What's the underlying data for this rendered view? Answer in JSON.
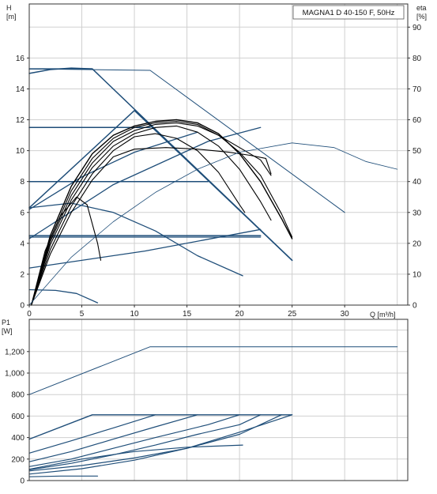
{
  "chart_data": [
    {
      "type": "line",
      "title": "MAGNA1 D 40-150 F, 50Hz",
      "xlabel": "Q [m³/h]",
      "ylabel_left": "H",
      "ylabel_left_unit": "[m]",
      "ylabel_right": "eta",
      "ylabel_right_unit": "[%]",
      "xlim": [
        0,
        36
      ],
      "ylim": [
        0,
        19.5
      ],
      "ylim_right": [
        0,
        97.5
      ],
      "x_ticks": [
        "0",
        "5",
        "10",
        "15",
        "20",
        "25",
        "30"
      ],
      "x_tick_values": [
        0,
        5,
        10,
        15,
        20,
        25,
        30
      ],
      "y_ticks": [
        "0",
        "2",
        "4",
        "6",
        "8",
        "10",
        "12",
        "14",
        "16"
      ],
      "y_tick_values": [
        0,
        2,
        4,
        6,
        8,
        10,
        12,
        14,
        16
      ],
      "y_right_ticks": [
        "0",
        "10",
        "20",
        "30",
        "40",
        "50",
        "60",
        "70",
        "80",
        "90"
      ],
      "y_right_tick_values": [
        0,
        10,
        20,
        30,
        40,
        50,
        60,
        70,
        80,
        90
      ],
      "grid": true,
      "series": [
        {
          "color": "#1f4e79",
          "width": 1.5,
          "values": [
            [
              0,
              15.3
            ],
            [
              6,
              15.3
            ],
            [
              25,
              2.9
            ]
          ]
        },
        {
          "color": "#1f4e79",
          "width": 1.5,
          "values": [
            [
              0,
              15.0
            ],
            [
              2,
              15.25
            ],
            [
              4,
              15.35
            ],
            [
              6,
              15.3
            ]
          ]
        },
        {
          "color": "#1f4e79",
          "width": 1.5,
          "values": [
            [
              0,
              11.5
            ],
            [
              11.5,
              11.5
            ]
          ]
        },
        {
          "color": "#1f4e79",
          "width": 1.5,
          "values": [
            [
              0,
              8.0
            ],
            [
              17,
              8.0
            ]
          ]
        },
        {
          "color": "#1f4e79",
          "width": 1.5,
          "values": [
            [
              0,
              4.5
            ],
            [
              22,
              4.5
            ]
          ]
        },
        {
          "color": "#1f4e79",
          "width": 1.5,
          "values": [
            [
              0,
              6.3
            ],
            [
              10,
              12.6
            ],
            [
              25,
              2.9
            ]
          ]
        },
        {
          "color": "#1f4e79",
          "width": 1.3,
          "values": [
            [
              0,
              6.3
            ],
            [
              4,
              6.6
            ],
            [
              8,
              6.0
            ],
            [
              12,
              4.8
            ],
            [
              16,
              3.2
            ],
            [
              20.3,
              1.9
            ]
          ]
        },
        {
          "color": "#1f4e79",
          "width": 1.3,
          "values": [
            [
              0,
              1.0
            ],
            [
              2.5,
              0.95
            ],
            [
              4.5,
              0.75
            ],
            [
              6.5,
              0.15
            ]
          ]
        },
        {
          "color": "#1f4e79",
          "width": 1.3,
          "values": [
            [
              0,
              4.4
            ],
            [
              22,
              4.4
            ]
          ]
        },
        {
          "color": "#1f4e79",
          "width": 1.3,
          "values": [
            [
              0,
              2.4
            ],
            [
              11,
              3.5
            ],
            [
              22,
              4.9
            ]
          ]
        },
        {
          "color": "#1f4e79",
          "width": 1.3,
          "values": [
            [
              0,
              4.3
            ],
            [
              8,
              7.8
            ],
            [
              17,
              10.6
            ],
            [
              22,
              11.5
            ]
          ]
        },
        {
          "color": "#1f4e79",
          "width": 1.3,
          "values": [
            [
              0,
              6.2
            ],
            [
              5,
              8.3
            ],
            [
              10,
              9.9
            ],
            [
              16,
              11.2
            ]
          ]
        },
        {
          "color": "#000000",
          "width": 1.4,
          "values": [
            [
              0.2,
              0.0
            ],
            [
              2,
              4.5
            ],
            [
              4,
              7.7
            ],
            [
              6,
              9.8
            ],
            [
              8,
              11.0
            ],
            [
              10,
              11.6
            ],
            [
              12,
              11.9
            ],
            [
              14,
              12.0
            ],
            [
              16,
              11.8
            ],
            [
              18,
              11.1
            ],
            [
              20,
              9.8
            ],
            [
              22,
              8.0
            ],
            [
              24,
              5.6
            ],
            [
              25,
              4.3
            ]
          ]
        },
        {
          "color": "#000000",
          "width": 1.1,
          "values": [
            [
              0.2,
              0.0
            ],
            [
              2,
              4.3
            ],
            [
              4,
              7.4
            ],
            [
              6,
              9.5
            ],
            [
              8,
              10.8
            ],
            [
              10,
              11.5
            ],
            [
              12,
              11.8
            ],
            [
              14,
              11.9
            ],
            [
              16,
              11.7
            ],
            [
              18,
              11.0
            ],
            [
              20,
              9.9
            ],
            [
              22,
              8.4
            ],
            [
              24,
              5.9
            ],
            [
              25,
              4.4
            ]
          ]
        },
        {
          "color": "#000000",
          "width": 1.1,
          "values": [
            [
              0.2,
              0.0
            ],
            [
              2,
              4.1
            ],
            [
              4,
              7.1
            ],
            [
              6,
              9.2
            ],
            [
              8,
              10.6
            ],
            [
              10,
              11.3
            ],
            [
              12,
              11.7
            ],
            [
              14,
              11.8
            ],
            [
              16,
              11.6
            ],
            [
              18,
              11.0
            ],
            [
              20,
              10.2
            ],
            [
              22,
              9.4
            ],
            [
              23,
              8.4
            ]
          ]
        },
        {
          "color": "#000000",
          "width": 1.1,
          "values": [
            [
              0.2,
              0.0
            ],
            [
              2,
              3.9
            ],
            [
              4,
              6.8
            ],
            [
              6,
              8.9
            ],
            [
              8,
              10.3
            ],
            [
              10,
              11.1
            ],
            [
              12,
              11.5
            ],
            [
              14,
              11.6
            ],
            [
              16,
              11.2
            ],
            [
              18,
              10.3
            ],
            [
              20,
              8.8
            ],
            [
              22,
              6.7
            ],
            [
              23,
              5.5
            ]
          ]
        },
        {
          "color": "#000000",
          "width": 1.1,
          "values": [
            [
              0.2,
              0.0
            ],
            [
              2,
              3.6
            ],
            [
              4,
              6.4
            ],
            [
              6,
              8.5
            ],
            [
              8,
              10.0
            ],
            [
              10,
              10.9
            ],
            [
              12,
              11.1
            ],
            [
              14,
              10.8
            ],
            [
              16,
              10.0
            ],
            [
              18,
              8.6
            ],
            [
              20,
              6.5
            ],
            [
              20.5,
              6.0
            ]
          ]
        },
        {
          "color": "#000000",
          "width": 1.1,
          "values": [
            [
              0.2,
              0.0
            ],
            [
              2,
              3.3
            ],
            [
              4,
              6.0
            ],
            [
              6,
              8.1
            ],
            [
              8,
              9.6
            ],
            [
              10,
              10.1
            ],
            [
              13,
              10.2
            ],
            [
              16,
              10.1
            ],
            [
              19,
              9.9
            ],
            [
              21,
              9.7
            ],
            [
              22.5,
              9.5
            ],
            [
              23,
              8.5
            ]
          ]
        },
        {
          "color": "#000000",
          "width": 1.1,
          "values": [
            [
              0.2,
              0.0
            ],
            [
              1.5,
              3.5
            ],
            [
              3,
              5.8
            ],
            [
              4.5,
              7.0
            ],
            [
              5.5,
              6.5
            ],
            [
              6.5,
              4.0
            ],
            [
              6.8,
              2.9
            ]
          ]
        },
        {
          "color": "#1f4e79",
          "width": 1.0,
          "values": [
            [
              0,
              15.3
            ],
            [
              11.5,
              15.2
            ],
            [
              30,
              6.0
            ]
          ]
        },
        {
          "color": "#1f4e79",
          "width": 0.8,
          "values": [
            [
              0,
              0.0
            ],
            [
              4,
              3.1
            ],
            [
              8,
              5.4
            ],
            [
              12,
              7.3
            ],
            [
              16,
              8.8
            ],
            [
              20,
              9.9
            ],
            [
              25,
              10.5
            ],
            [
              29,
              10.2
            ],
            [
              32,
              9.3
            ],
            [
              35,
              8.8
            ]
          ]
        }
      ]
    },
    {
      "type": "line",
      "ylabel": "P1",
      "ylabel_unit": "[W]",
      "xlim": [
        0,
        36
      ],
      "ylim": [
        0,
        1500
      ],
      "y_ticks": [
        "0",
        "200",
        "400",
        "600",
        "800",
        "1,000",
        "1,200"
      ],
      "y_tick_values": [
        0,
        200,
        400,
        600,
        800,
        1000,
        1200
      ],
      "x_tick_values": [
        0,
        5,
        10,
        15,
        20,
        25,
        30
      ],
      "grid": true,
      "series": [
        {
          "color": "#1f4e79",
          "width": 1.0,
          "values": [
            [
              0,
              800
            ],
            [
              11.5,
              1245
            ],
            [
              35,
              1245
            ]
          ]
        },
        {
          "color": "#1f4e79",
          "width": 1.4,
          "values": [
            [
              0,
              385
            ],
            [
              6,
              612
            ],
            [
              25,
              612
            ]
          ]
        },
        {
          "color": "#1f4e79",
          "width": 1.2,
          "values": [
            [
              0,
              255
            ],
            [
              4,
              370
            ],
            [
              8,
              490
            ],
            [
              12,
              612
            ]
          ]
        },
        {
          "color": "#1f4e79",
          "width": 1.2,
          "values": [
            [
              0,
              175
            ],
            [
              4,
              270
            ],
            [
              8,
              385
            ],
            [
              12,
              500
            ],
            [
              16,
              612
            ]
          ]
        },
        {
          "color": "#1f4e79",
          "width": 1.2,
          "values": [
            [
              0,
              130
            ],
            [
              4,
              200
            ],
            [
              8,
              300
            ],
            [
              12,
              400
            ],
            [
              17,
              520
            ],
            [
              20,
              612
            ]
          ]
        },
        {
          "color": "#1f4e79",
          "width": 1.2,
          "values": [
            [
              0,
              100
            ],
            [
              4,
              160
            ],
            [
              8,
              240
            ],
            [
              12,
              330
            ],
            [
              16,
              430
            ],
            [
              20,
              520
            ],
            [
              22,
              612
            ]
          ]
        },
        {
          "color": "#1f4e79",
          "width": 1.2,
          "values": [
            [
              0,
              90
            ],
            [
              5,
              140
            ],
            [
              10,
              210
            ],
            [
              15,
              300
            ],
            [
              20,
              430
            ],
            [
              24,
              612
            ]
          ]
        },
        {
          "color": "#1f4e79",
          "width": 1.2,
          "values": [
            [
              0,
              60
            ],
            [
              5,
              110
            ],
            [
              10,
              190
            ],
            [
              15,
              300
            ],
            [
              20,
              450
            ],
            [
              25,
              612
            ]
          ]
        },
        {
          "color": "#1f4e79",
          "width": 1.2,
          "values": [
            [
              0,
              105
            ],
            [
              5,
              200
            ],
            [
              10,
              270
            ],
            [
              15,
              310
            ],
            [
              20.3,
              330
            ]
          ]
        },
        {
          "color": "#1f4e79",
          "width": 1.2,
          "values": [
            [
              0,
              35
            ],
            [
              3,
              42
            ],
            [
              6.5,
              42
            ]
          ]
        }
      ]
    }
  ]
}
